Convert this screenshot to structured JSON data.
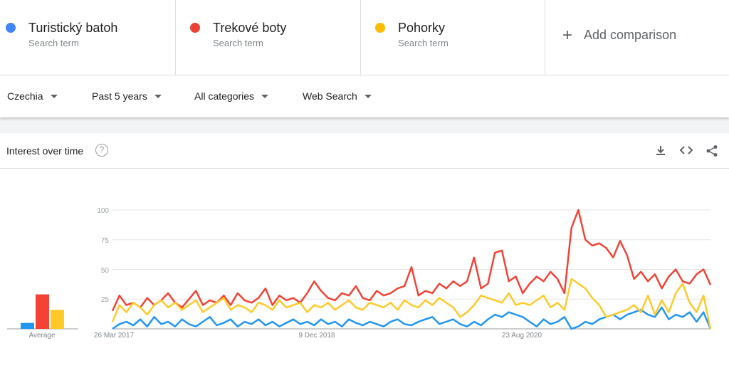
{
  "terms": [
    {
      "name": "Turistický batoh",
      "sub": "Search term",
      "color": "#4285f4"
    },
    {
      "name": "Trekové boty",
      "sub": "Search term",
      "color": "#ea4335"
    },
    {
      "name": "Pohorky",
      "sub": "Search term",
      "color": "#fbbc04"
    }
  ],
  "add_comparison": "Add comparison",
  "filters": {
    "region": "Czechia",
    "period": "Past 5 years",
    "category": "All categories",
    "search_type": "Web Search"
  },
  "card": {
    "title": "Interest over time",
    "help": "?",
    "icons": [
      "download-icon",
      "embed-icon",
      "share-icon"
    ]
  },
  "chart_data": {
    "type": "line",
    "ylim": [
      0,
      100
    ],
    "yticks": [
      "100",
      "75",
      "50",
      "25"
    ],
    "xticks": [
      "26 Mar 2017",
      "9 Dec 2018",
      "23 Aug 2020"
    ],
    "grid": true,
    "average_label": "Average",
    "averages": [
      {
        "name": "Turistický batoh",
        "value": 5,
        "color": "#2196f3"
      },
      {
        "name": "Trekové boty",
        "value": 29,
        "color": "#f44336"
      },
      {
        "name": "Pohorky",
        "value": 16,
        "color": "#ffca28"
      }
    ],
    "series": [
      {
        "name": "Turistický batoh",
        "color": "#2196f3",
        "values": [
          0,
          4,
          6,
          3,
          8,
          2,
          10,
          4,
          6,
          2,
          8,
          4,
          2,
          6,
          10,
          3,
          5,
          8,
          2,
          6,
          4,
          8,
          3,
          6,
          2,
          5,
          8,
          4,
          6,
          3,
          8,
          4,
          6,
          2,
          8,
          5,
          3,
          6,
          4,
          2,
          6,
          8,
          4,
          3,
          6,
          8,
          10,
          4,
          6,
          8,
          4,
          2,
          6,
          3,
          8,
          12,
          10,
          14,
          12,
          10,
          6,
          2,
          8,
          4,
          6,
          10,
          0,
          2,
          6,
          4,
          8,
          10,
          12,
          8,
          12,
          14,
          16,
          12,
          10,
          18,
          8,
          12,
          10,
          14,
          6,
          14,
          0
        ]
      },
      {
        "name": "Trekové boty",
        "color": "#f44336",
        "values": [
          15,
          28,
          20,
          22,
          18,
          26,
          20,
          24,
          30,
          22,
          18,
          25,
          32,
          20,
          24,
          22,
          28,
          20,
          30,
          24,
          22,
          26,
          34,
          20,
          28,
          24,
          26,
          22,
          30,
          40,
          32,
          26,
          24,
          30,
          28,
          36,
          26,
          24,
          32,
          28,
          30,
          34,
          36,
          52,
          28,
          32,
          30,
          38,
          34,
          40,
          36,
          40,
          60,
          34,
          38,
          64,
          66,
          40,
          44,
          30,
          38,
          44,
          40,
          48,
          42,
          30,
          85,
          100,
          75,
          70,
          72,
          68,
          60,
          74,
          62,
          42,
          48,
          40,
          46,
          34,
          44,
          50,
          40,
          38,
          46,
          50,
          37
        ]
      },
      {
        "name": "Pohorky",
        "color": "#ffca28",
        "values": [
          6,
          20,
          14,
          22,
          18,
          12,
          20,
          24,
          18,
          22,
          16,
          20,
          24,
          14,
          18,
          22,
          26,
          16,
          20,
          18,
          14,
          22,
          20,
          16,
          24,
          18,
          20,
          22,
          14,
          20,
          18,
          22,
          16,
          20,
          24,
          18,
          16,
          22,
          20,
          18,
          22,
          16,
          24,
          20,
          18,
          24,
          20,
          26,
          22,
          18,
          10,
          14,
          20,
          28,
          26,
          24,
          22,
          30,
          20,
          22,
          20,
          24,
          28,
          18,
          22,
          16,
          42,
          38,
          34,
          26,
          20,
          10,
          12,
          14,
          16,
          20,
          14,
          28,
          12,
          24,
          14,
          30,
          38,
          22,
          14,
          28,
          0
        ]
      }
    ]
  }
}
